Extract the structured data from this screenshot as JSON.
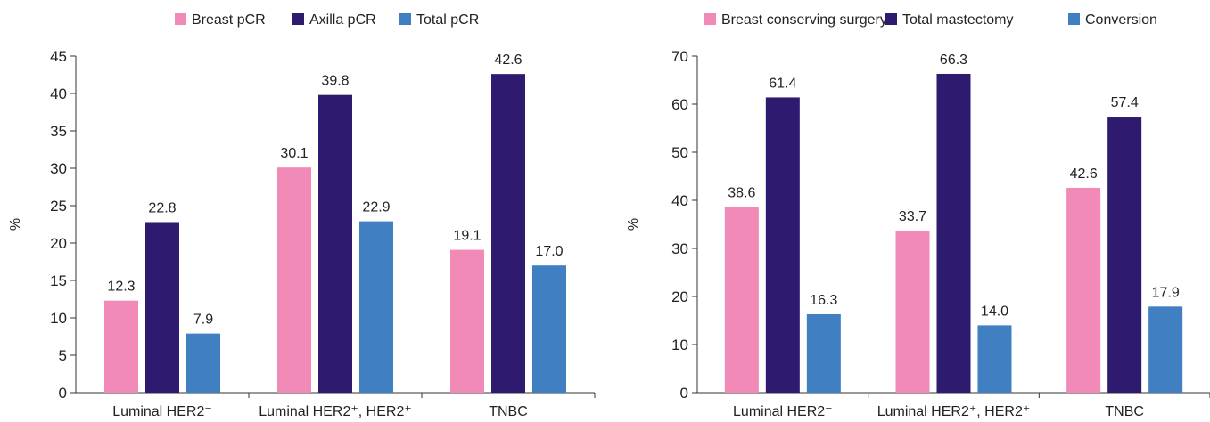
{
  "chart_data": [
    {
      "type": "bar",
      "ylabel": "%",
      "ylim": [
        0,
        45
      ],
      "yticks": [
        0,
        5,
        10,
        15,
        20,
        25,
        30,
        35,
        40,
        45
      ],
      "categories": [
        "Luminal HER2⁻",
        "Luminal HER2⁺, HER2⁺",
        "TNBC"
      ],
      "legend_position": "top",
      "series": [
        {
          "name": "Breast pCR",
          "color": "#f28ab8",
          "values": [
            12.3,
            30.1,
            19.1
          ],
          "labels": [
            "12.3",
            "30.1",
            "19.1"
          ]
        },
        {
          "name": "Axilla pCR",
          "color": "#2e1a6e",
          "values": [
            22.8,
            39.8,
            42.6
          ],
          "labels": [
            "22.8",
            "39.8",
            "42.6"
          ]
        },
        {
          "name": "Total pCR",
          "color": "#3f7fc2",
          "values": [
            7.9,
            22.9,
            17.0
          ],
          "labels": [
            "7.9",
            "22.9",
            "17.0"
          ]
        }
      ]
    },
    {
      "type": "bar",
      "ylabel": "%",
      "ylim": [
        0,
        70
      ],
      "yticks": [
        0,
        10,
        20,
        30,
        40,
        50,
        60,
        70
      ],
      "categories": [
        "Luminal HER2⁻",
        "Luminal HER2⁺, HER2⁺",
        "TNBC"
      ],
      "legend_position": "top",
      "series": [
        {
          "name": "Breast conserving surgery",
          "color": "#f28ab8",
          "values": [
            38.6,
            33.7,
            42.6
          ],
          "labels": [
            "38.6",
            "33.7",
            "42.6"
          ]
        },
        {
          "name": "Total mastectomy",
          "color": "#2e1a6e",
          "values": [
            61.4,
            66.3,
            57.4
          ],
          "labels": [
            "61.4",
            "66.3",
            "57.4"
          ]
        },
        {
          "name": "Conversion",
          "color": "#3f7fc2",
          "values": [
            16.3,
            14.0,
            17.9
          ],
          "labels": [
            "16.3",
            "14.0",
            "17.9"
          ]
        }
      ]
    }
  ]
}
